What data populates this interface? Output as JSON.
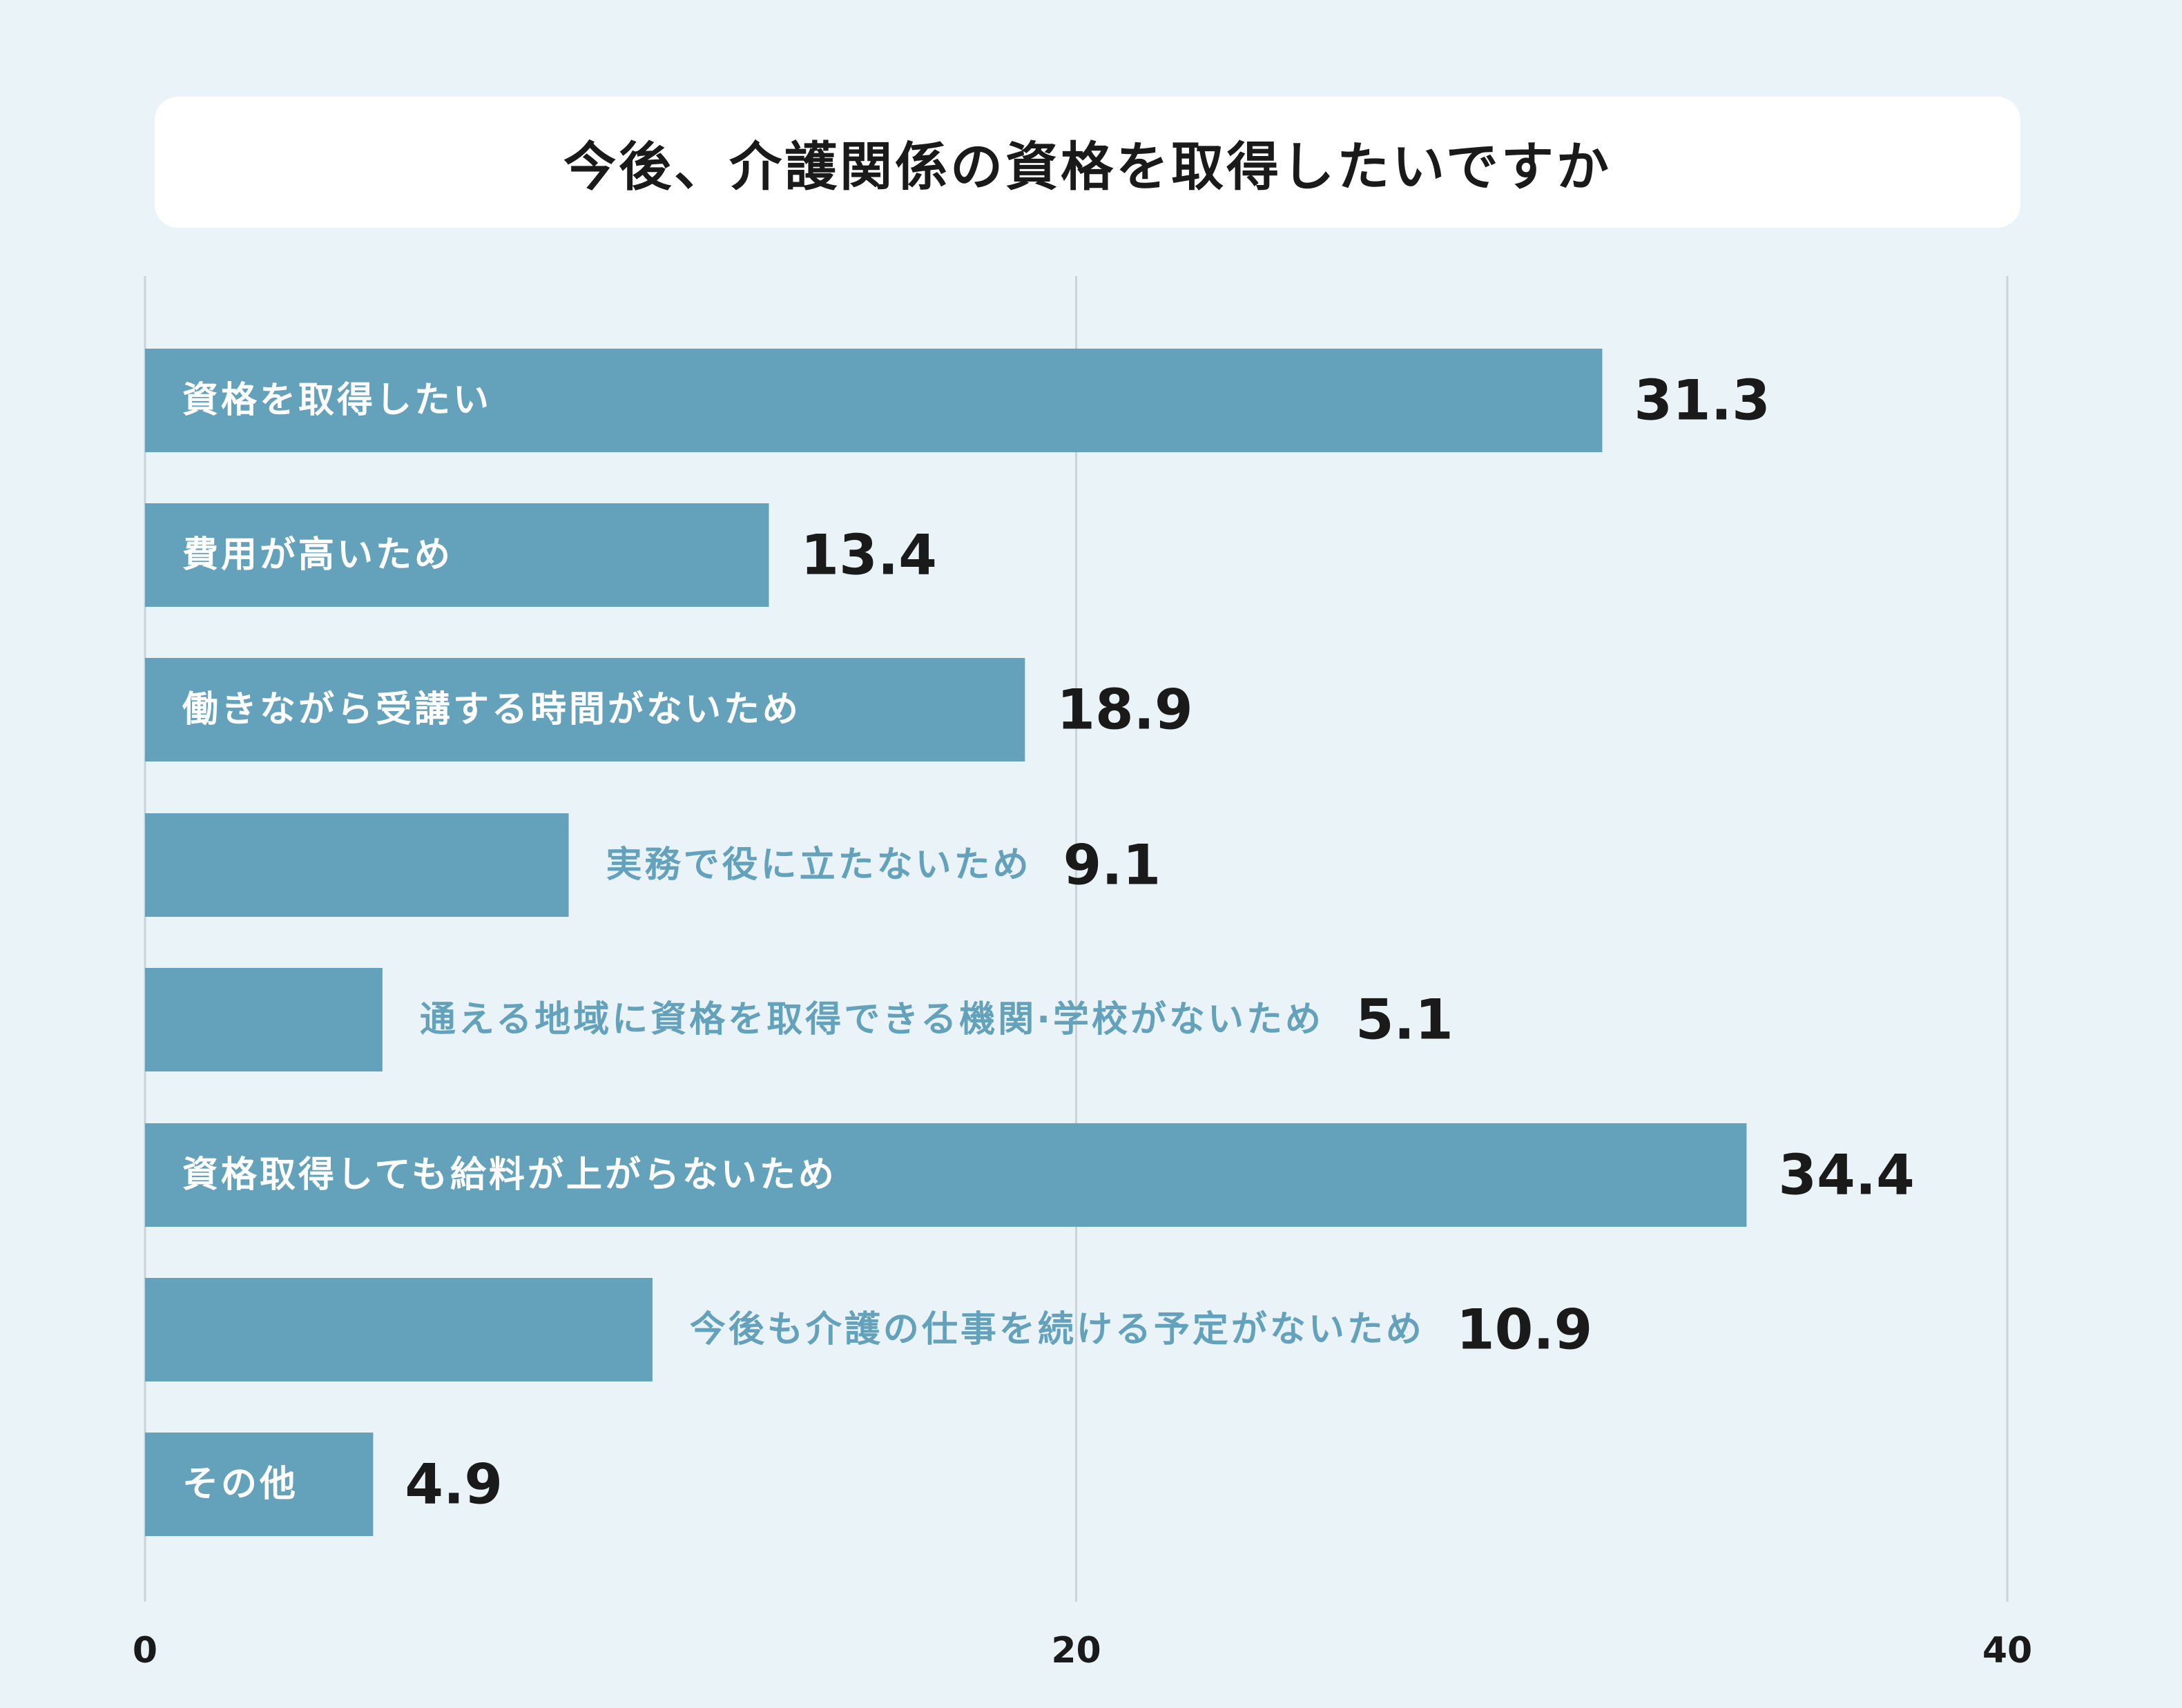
{
  "chart_data": {
    "type": "bar",
    "orientation": "horizontal",
    "title": "今後、介護関係の資格を取得したいですか",
    "categories": [
      "資格を取得したい",
      "費用が高いため",
      "働きながら受講する時間がないため",
      "実務で役に立たないため",
      "通える地域に資格を取得できる機関·学校がないため",
      "資格取得しても給料が上がらないため",
      "今後も介護の仕事を続ける予定がないため",
      "その他"
    ],
    "values": [
      31.3,
      13.4,
      18.9,
      9.1,
      5.1,
      34.4,
      10.9,
      4.9
    ],
    "value_labels": [
      "31.3",
      "13.4",
      "18.9",
      "9.1",
      "5.1",
      "34.4",
      "10.9",
      "4.9"
    ],
    "xlim": [
      0,
      40
    ],
    "xticks": [
      0,
      20,
      40
    ],
    "xtick_labels": [
      "0",
      "20",
      "40"
    ],
    "grid": true,
    "bar_color": "#64a1bb",
    "inside_label_color": "#ffffff",
    "outside_label_color": "#64a1bb",
    "background_color": "#eaf3f7"
  }
}
